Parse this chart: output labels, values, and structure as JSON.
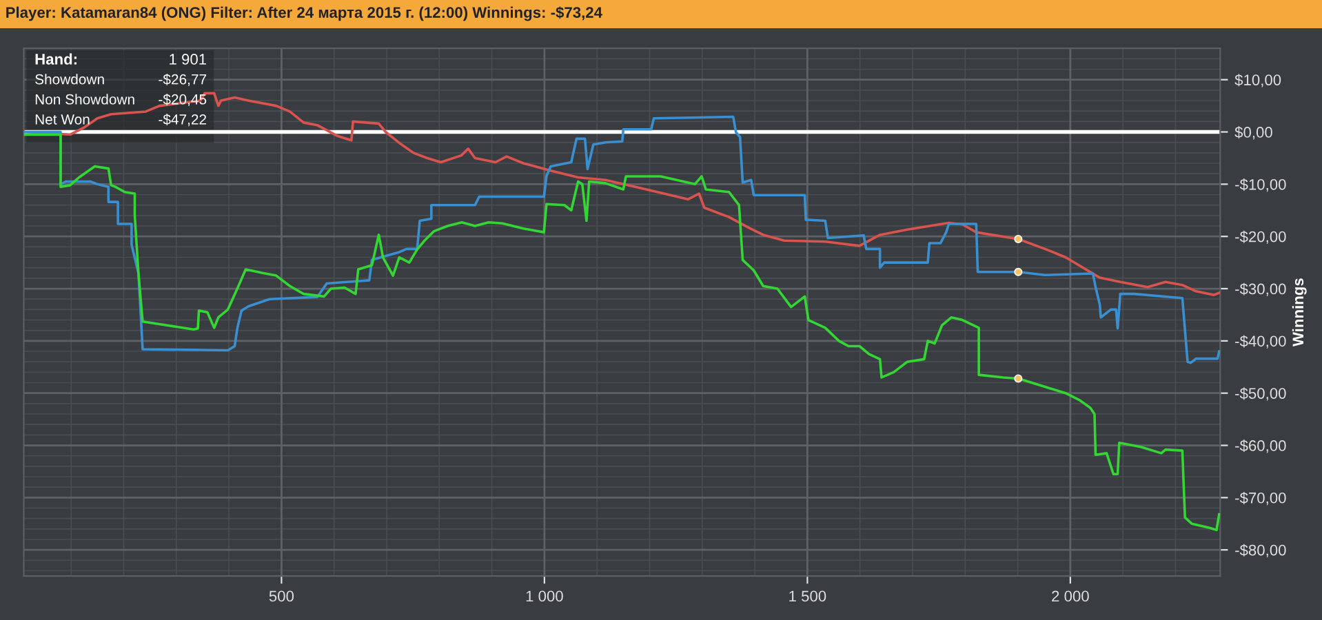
{
  "chart_data": {
    "type": "line",
    "title": "Player: Katamaran84 (ONG) Filter: After 24 марта 2015 г. (12:00) Winnings: -$73,24",
    "ylabel": "Winnings",
    "annotations": [
      "Hand:",
      "1 901",
      "Showdown",
      "-$26,77",
      "Non Showdown",
      "-$20,45",
      "Net Won",
      "-$47,22"
    ],
    "xlim": [
      10,
      2285
    ],
    "ylim": [
      -85,
      16
    ],
    "xticks": [
      {
        "value": 500,
        "label": "500"
      },
      {
        "value": 1000,
        "label": "1 000"
      },
      {
        "value": 1500,
        "label": "1 500"
      },
      {
        "value": 2000,
        "label": "2 000"
      }
    ],
    "yticks": [
      {
        "value": -80,
        "label": "-$80,00"
      },
      {
        "value": -70,
        "label": "-$70,00"
      },
      {
        "value": -60,
        "label": "-$60,00"
      },
      {
        "value": -50,
        "label": "-$50,00"
      },
      {
        "value": -40,
        "label": "-$40,00"
      },
      {
        "value": -30,
        "label": "-$30,00"
      },
      {
        "value": -20,
        "label": "-$20,00"
      },
      {
        "value": -10,
        "label": "-$10,00"
      },
      {
        "value": 0,
        "label": "$0,00"
      },
      {
        "value": 10,
        "label": "$10,00"
      }
    ],
    "grid": true,
    "ref_lines": [
      {
        "axis": "y",
        "value": 0,
        "color": "#ffffff"
      }
    ],
    "series": [
      {
        "color": "#d9534f",
        "x": [
          10,
          98,
          124,
          150,
          176,
          242,
          268,
          346,
          354,
          372,
          380,
          385,
          411,
          437,
          490,
          516,
          542,
          568,
          607,
          633,
          636,
          685,
          698,
          724,
          751,
          777,
          803,
          842,
          855,
          868,
          907,
          928,
          960,
          1012,
          1064,
          1116,
          1194,
          1273,
          1294,
          1304,
          1351,
          1390,
          1416,
          1456,
          1534,
          1599,
          1638,
          1690,
          1769,
          1795,
          1821,
          1901,
          1952,
          1991,
          2056,
          2095,
          2147,
          2181,
          2213,
          2239,
          2273,
          2283
        ],
        "values": [
          0,
          -0.5,
          0.8,
          2.6,
          3.4,
          3.9,
          5,
          6,
          7.4,
          7.4,
          5,
          6,
          6.6,
          6,
          5,
          3.9,
          1.8,
          1.3,
          -0.8,
          -1.6,
          2,
          1.6,
          0,
          -2.1,
          -4,
          -5,
          -5.8,
          -4.5,
          -3.2,
          -5,
          -5.8,
          -4.7,
          -6,
          -7.4,
          -8.7,
          -9.2,
          -11,
          -12.9,
          -11.8,
          -14.5,
          -16.3,
          -18.4,
          -19.7,
          -20.8,
          -21,
          -21.8,
          -19.7,
          -18.7,
          -17.4,
          -17.7,
          -19.2,
          -20.5,
          -22.4,
          -24,
          -27.9,
          -28.7,
          -29.7,
          -28.7,
          -29.3,
          -30.5,
          -31.2,
          -30.8
        ]
      },
      {
        "color": "#3a8fd0",
        "x": [
          10,
          80,
          80,
          90,
          137,
          150,
          171,
          171,
          189,
          189,
          215,
          215,
          228,
          236,
          398,
          411,
          416,
          424,
          437,
          477,
          568,
          586,
          667,
          672,
          724,
          738,
          758,
          763,
          785,
          785,
          868,
          876,
          999,
          1004,
          1012,
          1051,
          1061,
          1077,
          1082,
          1093,
          1116,
          1148,
          1150,
          1203,
          1208,
          1359,
          1364,
          1372,
          1377,
          1393,
          1398,
          1495,
          1497,
          1534,
          1539,
          1607,
          1612,
          1638,
          1638,
          1646,
          1729,
          1732,
          1753,
          1764,
          1769,
          1821,
          1824,
          1901,
          1952,
          2043,
          2048,
          2056,
          2058,
          2077,
          2087,
          2090,
          2095,
          2121,
          2213,
          2223,
          2229,
          2239,
          2280,
          2283
        ],
        "values": [
          0,
          0,
          -10,
          -9.5,
          -9.5,
          -10,
          -10.5,
          -13.4,
          -13.4,
          -17.6,
          -17.6,
          -21.6,
          -27,
          -41.6,
          -41.8,
          -41,
          -37.6,
          -34.2,
          -33.4,
          -32,
          -31.6,
          -29,
          -28.4,
          -24.5,
          -23,
          -22.4,
          -22.4,
          -17,
          -16.6,
          -14,
          -14,
          -12.4,
          -12.4,
          -8.4,
          -6.6,
          -5.8,
          -1.3,
          -1.3,
          -7.1,
          -2.4,
          -2,
          -1.8,
          0.5,
          0.5,
          2.6,
          2.9,
          0,
          -1,
          -9.7,
          -9.2,
          -12.1,
          -12.1,
          -16.8,
          -17,
          -20.3,
          -19.8,
          -22.4,
          -22.4,
          -26,
          -25,
          -25,
          -21.3,
          -21.3,
          -19.2,
          -17.6,
          -17.6,
          -26.8,
          -26.8,
          -27.4,
          -27.1,
          -29.7,
          -33,
          -35.5,
          -34,
          -34,
          -37.6,
          -31,
          -31,
          -31.8,
          -44,
          -44.2,
          -43.4,
          -43.4,
          -42
        ]
      },
      {
        "color": "#33d633",
        "x": [
          10,
          80,
          80,
          98,
          115,
          145,
          171,
          176,
          184,
          202,
          221,
          221,
          228,
          236,
          333,
          341,
          343,
          359,
          372,
          380,
          398,
          416,
          432,
          464,
          490,
          516,
          542,
          581,
          594,
          620,
          641,
          646,
          672,
          685,
          693,
          712,
          724,
          743,
          758,
          772,
          790,
          816,
          843,
          868,
          894,
          920,
          960,
          999,
          1004,
          1038,
          1051,
          1064,
          1072,
          1080,
          1085,
          1116,
          1150,
          1155,
          1221,
          1286,
          1299,
          1307,
          1351,
          1370,
          1377,
          1398,
          1416,
          1443,
          1469,
          1495,
          1502,
          1534,
          1560,
          1578,
          1599,
          1617,
          1638,
          1641,
          1664,
          1690,
          1722,
          1729,
          1742,
          1756,
          1774,
          1795,
          1826,
          1826,
          1873,
          1901,
          1952,
          1991,
          2017,
          2038,
          2046,
          2048,
          2069,
          2082,
          2090,
          2093,
          2134,
          2173,
          2181,
          2213,
          2218,
          2231,
          2265,
          2278,
          2283
        ],
        "values": [
          -0.5,
          -0.5,
          -10.5,
          -10.2,
          -8.7,
          -6.6,
          -7,
          -10.2,
          -10.5,
          -11.5,
          -11.8,
          -16,
          -27,
          -36.3,
          -37.8,
          -37.6,
          -34.2,
          -34.5,
          -37.5,
          -35.5,
          -34,
          -30,
          -26.3,
          -27,
          -27.5,
          -29.5,
          -31,
          -31.5,
          -30,
          -29.8,
          -31,
          -26.3,
          -25.5,
          -19.7,
          -24,
          -27.5,
          -24,
          -25,
          -22.5,
          -20.8,
          -19,
          -18,
          -17.3,
          -18,
          -17.3,
          -17.5,
          -18.5,
          -19.2,
          -13.8,
          -14,
          -15,
          -9.5,
          -10,
          -17,
          -9.5,
          -9.8,
          -11,
          -8.5,
          -8.5,
          -10,
          -8.5,
          -11,
          -11.5,
          -14,
          -24.5,
          -26.5,
          -29.5,
          -30,
          -33.5,
          -31.5,
          -36,
          -37.5,
          -40,
          -41,
          -41,
          -42.5,
          -43.5,
          -47,
          -46,
          -44,
          -43.5,
          -40,
          -40.5,
          -37,
          -35.5,
          -36,
          -37.5,
          -46.5,
          -47,
          -47.2,
          -48.8,
          -50,
          -51.3,
          -52.8,
          -54,
          -61.8,
          -61.5,
          -65.5,
          -65.5,
          -59.5,
          -60.3,
          -61.5,
          -60.8,
          -61,
          -73.8,
          -75,
          -75.8,
          -76.2,
          -73.2
        ]
      },
      {
        "type": "scatter",
        "marker": "circle",
        "color": "#f5c46a",
        "x": [
          1901,
          1901,
          1901
        ],
        "values": [
          -20.5,
          -26.8,
          -47.2
        ]
      }
    ]
  }
}
